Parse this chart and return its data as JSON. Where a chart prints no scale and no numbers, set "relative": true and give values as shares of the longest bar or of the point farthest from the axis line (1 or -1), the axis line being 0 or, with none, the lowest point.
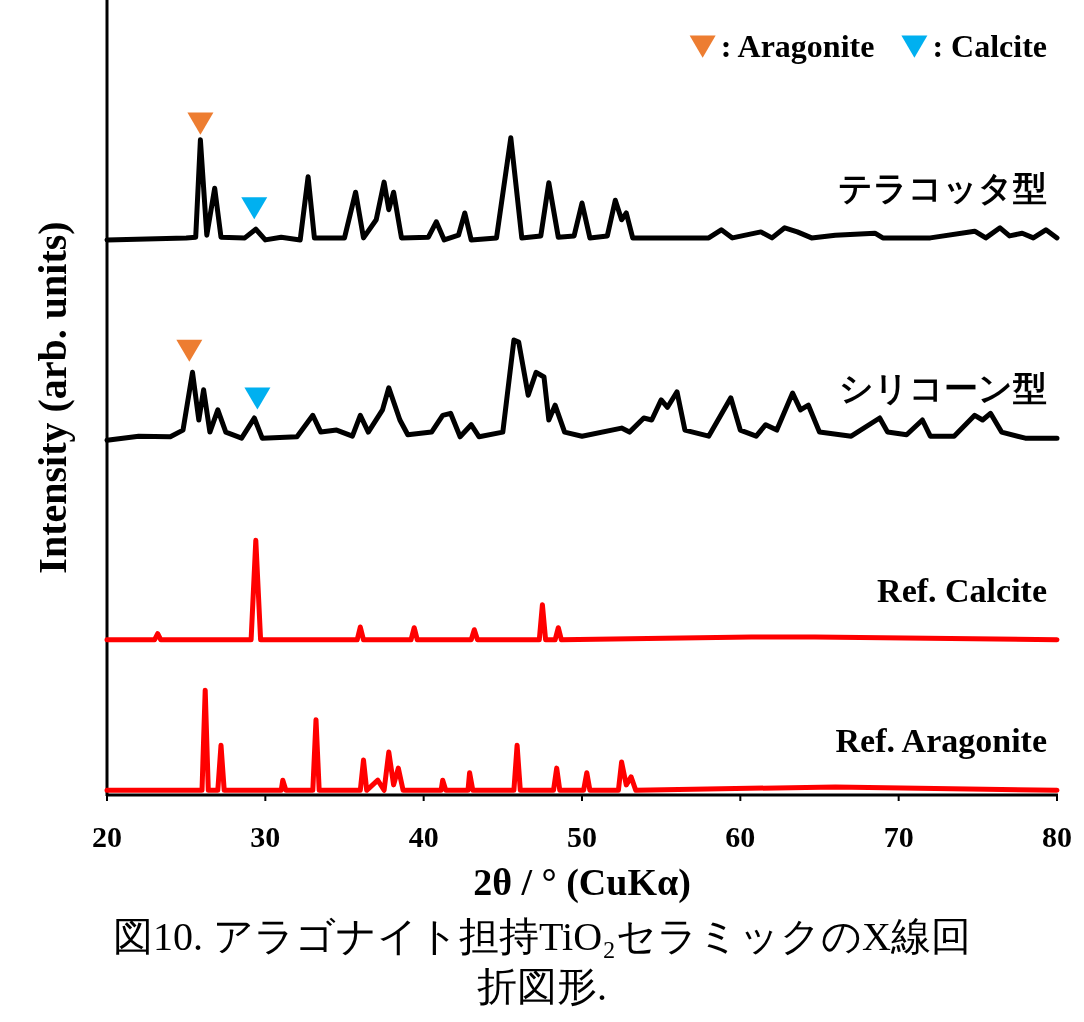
{
  "chart_data": {
    "type": "line",
    "relative": true,
    "xlabel": "2θ / °  (CuKα)",
    "ylabel": "Intensity (arb. units)",
    "xlim": [
      20,
      80
    ],
    "xticks": [
      20,
      30,
      40,
      50,
      60,
      70,
      80
    ],
    "legend": "top right",
    "grid": false,
    "annotations": [
      "図10. アラゴナイト担持TiO₂セラミックのX線回折図形."
    ],
    "series": [
      {
        "name": "テラコッタ型",
        "color": "#000000",
        "x": [
          20,
          25,
          25.6,
          25.9,
          26.3,
          26.8,
          27.2,
          28.7,
          29.4,
          30,
          31,
          32.2,
          32.7,
          33.1,
          35,
          35.7,
          36.2,
          37,
          37.5,
          37.8,
          38.1,
          38.6,
          40.3,
          40.8,
          41.3,
          42.2,
          42.6,
          43,
          44.6,
          45.5,
          46.2,
          47.4,
          47.9,
          48.5,
          49.5,
          50,
          50.5,
          51.6,
          52.1,
          52.5,
          52.8,
          53.2,
          55,
          58,
          58.8,
          59.5,
          61.3,
          62,
          62.8,
          63.6,
          64.5,
          66,
          68.5,
          69,
          72,
          74.8,
          75.5,
          76.4,
          77,
          77.8,
          78.5,
          79.3,
          80
        ],
        "values": [
          0.826,
          0.829,
          0.83,
          0.975,
          0.833,
          0.903,
          0.83,
          0.829,
          0.842,
          0.826,
          0.83,
          0.826,
          0.92,
          0.829,
          0.829,
          0.897,
          0.829,
          0.856,
          0.912,
          0.871,
          0.897,
          0.829,
          0.83,
          0.853,
          0.826,
          0.833,
          0.866,
          0.826,
          0.829,
          0.978,
          0.829,
          0.832,
          0.911,
          0.83,
          0.832,
          0.881,
          0.829,
          0.832,
          0.885,
          0.856,
          0.866,
          0.829,
          0.829,
          0.829,
          0.841,
          0.829,
          0.838,
          0.829,
          0.844,
          0.838,
          0.829,
          0.833,
          0.836,
          0.829,
          0.829,
          0.839,
          0.829,
          0.844,
          0.832,
          0.836,
          0.829,
          0.841,
          0.829
        ]
      },
      {
        "name": "シリコーン型",
        "color": "#000000",
        "x": [
          20,
          22,
          24,
          24.8,
          25.4,
          25.8,
          26.1,
          26.5,
          27,
          27.5,
          28.5,
          29.3,
          29.8,
          32,
          33,
          33.5,
          34.5,
          35.5,
          36,
          36.5,
          37.4,
          37.8,
          38.5,
          39,
          40.5,
          41.2,
          41.7,
          42.3,
          43,
          43.5,
          45,
          45.7,
          46,
          46.6,
          47.1,
          47.6,
          47.9,
          48.3,
          48.9,
          50,
          52.5,
          53,
          53.9,
          54.4,
          55,
          55.4,
          56,
          56.5,
          58,
          59.4,
          60,
          61,
          61.6,
          62.3,
          63.3,
          63.8,
          64.3,
          65,
          67,
          68.8,
          69.3,
          70.5,
          71.5,
          72,
          73.5,
          74.8,
          75.3,
          75.8,
          76.5,
          78,
          80
        ],
        "values": [
          0.528,
          0.534,
          0.533,
          0.543,
          0.629,
          0.558,
          0.603,
          0.54,
          0.573,
          0.54,
          0.531,
          0.561,
          0.531,
          0.533,
          0.565,
          0.54,
          0.543,
          0.534,
          0.565,
          0.54,
          0.573,
          0.606,
          0.558,
          0.536,
          0.54,
          0.565,
          0.568,
          0.533,
          0.551,
          0.533,
          0.54,
          0.677,
          0.674,
          0.595,
          0.629,
          0.622,
          0.558,
          0.58,
          0.54,
          0.534,
          0.546,
          0.54,
          0.561,
          0.558,
          0.588,
          0.577,
          0.6,
          0.543,
          0.534,
          0.591,
          0.543,
          0.534,
          0.551,
          0.543,
          0.598,
          0.573,
          0.58,
          0.54,
          0.534,
          0.561,
          0.54,
          0.536,
          0.558,
          0.534,
          0.534,
          0.565,
          0.558,
          0.568,
          0.54,
          0.531,
          0.531
        ]
      },
      {
        "name": "Ref. Calcite",
        "color": "#ff0000",
        "x": [
          20,
          23,
          23.2,
          23.4,
          29.1,
          29.4,
          29.7,
          35.8,
          36,
          36.2,
          39.2,
          39.4,
          39.6,
          43,
          43.2,
          43.4,
          47.3,
          47.5,
          47.7,
          48.3,
          48.5,
          48.7,
          57.4,
          60.7,
          64.7,
          80
        ],
        "values": [
          0.231,
          0.231,
          0.24,
          0.231,
          0.231,
          0.379,
          0.231,
          0.231,
          0.25,
          0.231,
          0.231,
          0.249,
          0.231,
          0.231,
          0.246,
          0.231,
          0.231,
          0.283,
          0.231,
          0.231,
          0.249,
          0.231,
          0.234,
          0.235,
          0.235,
          0.231
        ]
      },
      {
        "name": "Ref. Aragonite",
        "color": "#ff0000",
        "x": [
          20,
          26,
          26.2,
          26.4,
          27,
          27.2,
          27.4,
          31,
          31.1,
          31.3,
          33,
          33.2,
          33.4,
          36,
          36.2,
          36.4,
          37.1,
          37.5,
          37.8,
          38.1,
          38.4,
          38.7,
          41.1,
          41.2,
          41.4,
          42.8,
          42.9,
          43.1,
          45.7,
          45.9,
          46.1,
          48.2,
          48.4,
          48.6,
          50.1,
          50.3,
          50.5,
          52.3,
          52.5,
          52.8,
          53.1,
          53.4,
          66,
          80
        ],
        "values": [
          0.007,
          0.007,
          0.156,
          0.007,
          0.007,
          0.074,
          0.007,
          0.007,
          0.022,
          0.007,
          0.007,
          0.112,
          0.007,
          0.007,
          0.052,
          0.007,
          0.022,
          0.007,
          0.064,
          0.015,
          0.04,
          0.007,
          0.007,
          0.022,
          0.007,
          0.007,
          0.033,
          0.007,
          0.007,
          0.074,
          0.007,
          0.007,
          0.04,
          0.007,
          0.007,
          0.033,
          0.007,
          0.007,
          0.049,
          0.015,
          0.027,
          0.007,
          0.012,
          0.007
        ]
      },
      {
        "name": ": Aragonite",
        "type": "scatter",
        "marker": "triangle",
        "color": "#ed7d31",
        "x": [
          25.9,
          25.2
        ],
        "values": [
          1.0,
          0.662
        ]
      },
      {
        "name": ": Calcite",
        "type": "scatter",
        "marker": "triangle",
        "color": "#00b0f0",
        "x": [
          29.3,
          29.5
        ],
        "values": [
          0.874,
          0.591
        ]
      }
    ]
  }
}
